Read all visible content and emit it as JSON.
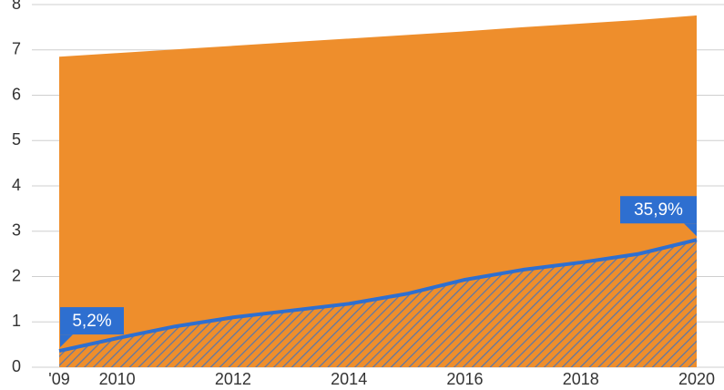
{
  "chart_data": {
    "type": "area",
    "x": [
      2009,
      2010,
      2011,
      2012,
      2013,
      2014,
      2015,
      2016,
      2017,
      2018,
      2019,
      2020
    ],
    "series": [
      {
        "color": "#ee8e2c",
        "values": [
          6.85,
          6.93,
          7.01,
          7.09,
          7.17,
          7.25,
          7.33,
          7.41,
          7.5,
          7.58,
          7.66,
          7.76
        ]
      },
      {
        "color": "#2e6fd0",
        "hatch": true,
        "values": [
          0.36,
          0.64,
          0.9,
          1.1,
          1.25,
          1.4,
          1.62,
          1.93,
          2.15,
          2.31,
          2.5,
          2.81
        ]
      }
    ],
    "annotations": [
      {
        "text": "5,2%",
        "x": 2009
      },
      {
        "text": "35,9%",
        "x": 2020
      }
    ],
    "xlim": [
      2009,
      2020
    ],
    "xticks": [
      {
        "value": 2009,
        "label": "'09"
      },
      2010,
      2012,
      2014,
      2016,
      2018,
      2020
    ],
    "ylim": [
      0,
      8
    ],
    "yticks": [
      0,
      1,
      2,
      3,
      4,
      5,
      6,
      7,
      8
    ],
    "grid": true
  }
}
